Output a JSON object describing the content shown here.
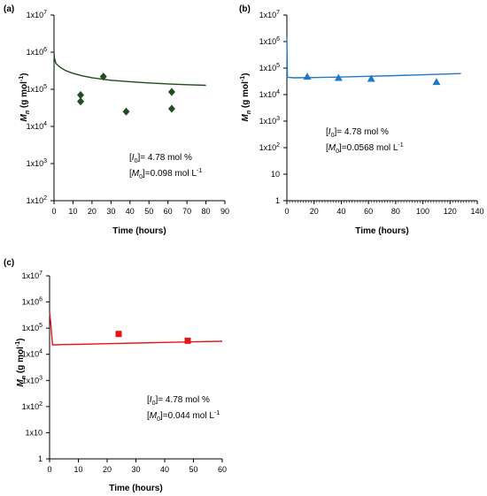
{
  "chart_data": [
    {
      "type": "scatter",
      "panel_label": "(a)",
      "xlabel": "Time (hours)",
      "ylabel_main": "M",
      "ylabel_sub": "n",
      "ylabel_unit": "(g mol",
      "ylabel_unit_sup": "-1",
      "ylabel_unit_end": ")",
      "log_y": true,
      "xlim": [
        0,
        90
      ],
      "ylim": [
        100,
        10000000
      ],
      "x_ticks": [
        "0",
        "10",
        "20",
        "30",
        "40",
        "50",
        "60",
        "70",
        "80",
        "90"
      ],
      "y_ticks": [
        "1x10",
        "1x10",
        "1x10",
        "1x10",
        "1x10",
        "1x10"
      ],
      "y_tick_exps": [
        "2",
        "3",
        "4",
        "5",
        "6",
        "7"
      ],
      "annotation_1": {
        "open": "[",
        "var": "I",
        "sub": "0",
        "rest": "]= 4.78 mol %"
      },
      "annotation_2": {
        "open": "[",
        "var": "M",
        "sub": "0",
        "rest": "]=0.098 mol L",
        "sup": "-1"
      },
      "color": "#1e4d1e",
      "marker": "diamond",
      "points": [
        {
          "x": 14,
          "y": 70000
        },
        {
          "x": 14,
          "y": 47000
        },
        {
          "x": 26,
          "y": 220000
        },
        {
          "x": 38,
          "y": 25000
        },
        {
          "x": 62,
          "y": 85000
        },
        {
          "x": 62,
          "y": 30000
        }
      ],
      "fit_curve": [
        {
          "x": 0,
          "y": 1000000
        },
        {
          "x": 0.2,
          "y": 700000
        },
        {
          "x": 1,
          "y": 500000
        },
        {
          "x": 3,
          "y": 400000
        },
        {
          "x": 6,
          "y": 320000
        },
        {
          "x": 10,
          "y": 270000
        },
        {
          "x": 15,
          "y": 230000
        },
        {
          "x": 20,
          "y": 205000
        },
        {
          "x": 30,
          "y": 175000
        },
        {
          "x": 40,
          "y": 160000
        },
        {
          "x": 50,
          "y": 148000
        },
        {
          "x": 60,
          "y": 140000
        },
        {
          "x": 70,
          "y": 133000
        },
        {
          "x": 80,
          "y": 128000
        }
      ]
    },
    {
      "type": "scatter",
      "panel_label": "(b)",
      "xlabel": "Time (hours)",
      "ylabel_main": "M",
      "ylabel_sub": "n",
      "ylabel_unit": "(g mol",
      "ylabel_unit_sup": "-1",
      "ylabel_unit_end": ")",
      "log_y": true,
      "xlim": [
        0,
        140
      ],
      "ylim": [
        1,
        10000000
      ],
      "x_ticks": [
        "0",
        "20",
        "40",
        "60",
        "80",
        "100",
        "120",
        "140"
      ],
      "y_ticks": [
        "1",
        "10",
        "1x10",
        "1x10",
        "1x10",
        "1x10",
        "1x10",
        "1x10"
      ],
      "y_tick_exps": [
        "",
        "",
        "2",
        "3",
        "4",
        "5",
        "6",
        "7"
      ],
      "annotation_1": {
        "open": "[",
        "var": "I",
        "sub": "0",
        "rest": "]= 4.78 mol %"
      },
      "annotation_2": {
        "open": "[",
        "var": "M",
        "sub": "0",
        "rest": "]=0.0568 mol L",
        "sup": "-1"
      },
      "color": "#1f78c8",
      "marker": "triangle",
      "points": [
        {
          "x": 15,
          "y": 48000
        },
        {
          "x": 38,
          "y": 43000
        },
        {
          "x": 62,
          "y": 40000
        },
        {
          "x": 110,
          "y": 30000
        }
      ],
      "fit_curve": [
        {
          "x": 0,
          "y": 1500000
        },
        {
          "x": 0.4,
          "y": 45000
        },
        {
          "x": 5,
          "y": 43000
        },
        {
          "x": 20,
          "y": 44000
        },
        {
          "x": 40,
          "y": 46000
        },
        {
          "x": 60,
          "y": 49000
        },
        {
          "x": 80,
          "y": 52000
        },
        {
          "x": 100,
          "y": 56000
        },
        {
          "x": 128,
          "y": 62000
        }
      ]
    },
    {
      "type": "scatter",
      "panel_label": "(c)",
      "xlabel": "Time (hours)",
      "ylabel_main": "M",
      "ylabel_sub": "n",
      "ylabel_unit": "(g mol",
      "ylabel_unit_sup": "-1",
      "ylabel_unit_end": ")",
      "log_y": true,
      "xlim": [
        0,
        60
      ],
      "ylim": [
        1,
        10000000
      ],
      "x_ticks": [
        "0",
        "10",
        "20",
        "30",
        "40",
        "50",
        "60"
      ],
      "y_ticks": [
        "1",
        "1x10",
        "1x10",
        "1x10",
        "1x10",
        "1x10",
        "1x10",
        "1x10"
      ],
      "y_tick_exps": [
        "",
        "",
        "2",
        "3",
        "4",
        "5",
        "6",
        "7"
      ],
      "annotation_1": {
        "open": "[",
        "var": "I",
        "sub": "0",
        "rest": "]= 4.78 mol %"
      },
      "annotation_2": {
        "open": "[",
        "var": "M",
        "sub": "0",
        "rest": "]=0.044 mol L",
        "sup": "-1"
      },
      "color": "#e8141c",
      "marker": "square",
      "points": [
        {
          "x": 24,
          "y": 60000
        },
        {
          "x": 48,
          "y": 33000
        }
      ],
      "fit_curve": [
        {
          "x": 0,
          "y": 400000
        },
        {
          "x": 0.3,
          "y": 200000
        },
        {
          "x": 0.7,
          "y": 60000
        },
        {
          "x": 1,
          "y": 23000
        },
        {
          "x": 2,
          "y": 23000
        },
        {
          "x": 5,
          "y": 23500
        },
        {
          "x": 10,
          "y": 24000
        },
        {
          "x": 20,
          "y": 25500
        },
        {
          "x": 30,
          "y": 27000
        },
        {
          "x": 40,
          "y": 28500
        },
        {
          "x": 50,
          "y": 30000
        },
        {
          "x": 60,
          "y": 31500
        }
      ]
    }
  ]
}
